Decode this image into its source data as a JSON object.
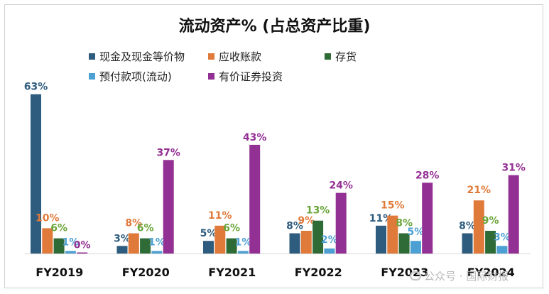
{
  "chart_data": {
    "type": "bar",
    "title": "流动资产% (占总资产比重)",
    "categories": [
      "FY2019",
      "FY2020",
      "FY2021",
      "FY2022",
      "FY2023",
      "FY2024"
    ],
    "series": [
      {
        "name": "现金及现金等价物",
        "color": "#2e5c7e",
        "values": [
          63,
          3,
          5,
          8,
          11,
          8
        ],
        "labels": [
          "63%",
          "3%",
          "5%",
          "8%",
          "11%",
          "8%"
        ]
      },
      {
        "name": "应收账款",
        "color": "#e07a3a",
        "values": [
          10,
          8,
          11,
          9,
          15,
          21
        ],
        "labels": [
          "10%",
          "8%",
          "11%",
          "9%",
          "15%",
          "21%"
        ]
      },
      {
        "name": "存货",
        "color": "#2f6b36",
        "values": [
          6,
          6,
          6,
          13,
          8,
          9
        ],
        "labels": [
          "6%",
          "6%",
          "6%",
          "13%",
          "8%",
          "9%"
        ]
      },
      {
        "name": "预付款项(流动)",
        "color": "#4da0d3",
        "values": [
          1,
          1,
          1,
          2,
          5,
          3
        ],
        "labels": [
          "1%",
          "1%",
          "1%",
          "2%",
          "5%",
          "3%"
        ]
      },
      {
        "name": "有价证券投资",
        "color": "#933093",
        "values": [
          0,
          37,
          43,
          24,
          28,
          31
        ],
        "labels": [
          "0%",
          "37%",
          "43%",
          "24%",
          "28%",
          "31%"
        ]
      }
    ],
    "label_colors": [
      "#2e5c7e",
      "#e07a3a",
      "#6aa53a",
      "#4da0d3",
      "#933093"
    ],
    "legend_position": "top",
    "grid": false,
    "ylim": [
      0,
      65
    ]
  },
  "watermark": {
    "text": "公众号 · 国际财报"
  }
}
